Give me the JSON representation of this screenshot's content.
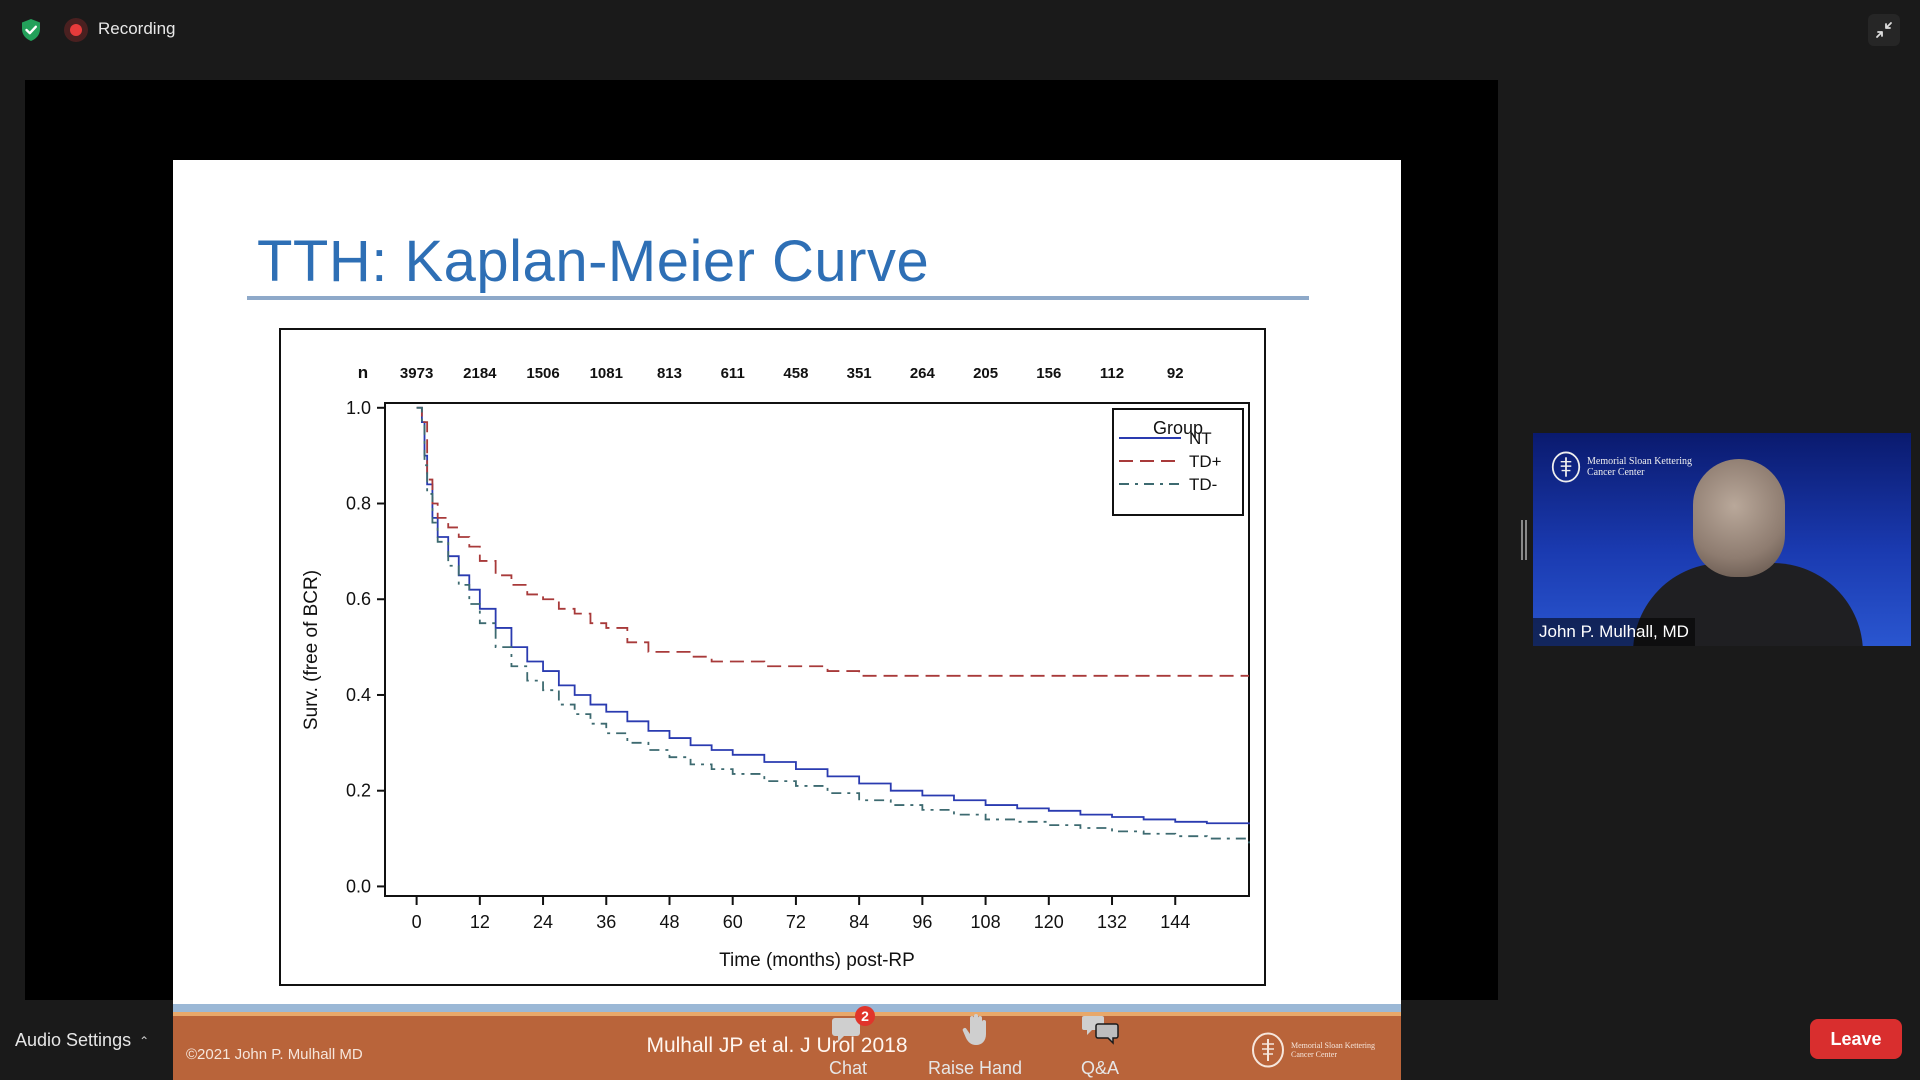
{
  "status": {
    "recording_label": "Recording"
  },
  "slide": {
    "title": "TTH: Kaplan-Meier Curve",
    "copyright": "©2021 John P. Mulhall MD",
    "citation": "Mulhall JP et al. J Urol 2018",
    "institution": "Memorial Sloan Kettering Cancer Center"
  },
  "chart_data": {
    "type": "line",
    "xlabel": "Time (months) post-RP",
    "ylabel": "Surv. (free of BCR)",
    "xlim": [
      -6,
      158
    ],
    "ylim": [
      -0.02,
      1.01
    ],
    "xticks": [
      0,
      12,
      24,
      36,
      48,
      60,
      72,
      84,
      96,
      108,
      120,
      132,
      144
    ],
    "yticks": [
      "0.0",
      "0.2",
      "0.4",
      "0.6",
      "0.8",
      "1.0"
    ],
    "at_risk_label": "n",
    "at_risk": [
      "3973",
      "2184",
      "1506",
      "1081",
      "813",
      "611",
      "458",
      "351",
      "264",
      "205",
      "156",
      "112",
      "92"
    ],
    "legend_title": "Group",
    "legend_position": "top-right",
    "series": [
      {
        "name": "NT",
        "color": "#2a3bb0",
        "style": "solid",
        "x": [
          0,
          1,
          1.5,
          2,
          3,
          4,
          6,
          8,
          10,
          12,
          15,
          18,
          21,
          24,
          27,
          30,
          33,
          36,
          40,
          44,
          48,
          52,
          56,
          60,
          66,
          72,
          78,
          84,
          90,
          96,
          102,
          108,
          114,
          120,
          126,
          132,
          138,
          144,
          150,
          158
        ],
        "y": [
          1.0,
          0.97,
          0.9,
          0.84,
          0.77,
          0.73,
          0.69,
          0.65,
          0.62,
          0.58,
          0.54,
          0.5,
          0.47,
          0.45,
          0.42,
          0.4,
          0.38,
          0.365,
          0.345,
          0.325,
          0.31,
          0.295,
          0.285,
          0.275,
          0.26,
          0.245,
          0.23,
          0.215,
          0.2,
          0.19,
          0.18,
          0.17,
          0.163,
          0.158,
          0.15,
          0.145,
          0.14,
          0.135,
          0.132,
          0.13
        ]
      },
      {
        "name": "TD+",
        "color": "#a83a3a",
        "style": "dashed",
        "x": [
          0,
          1,
          2,
          3,
          4,
          6,
          8,
          10,
          12,
          15,
          18,
          21,
          24,
          27,
          30,
          33,
          36,
          40,
          44,
          48,
          52,
          56,
          60,
          66,
          72,
          78,
          84,
          96,
          108,
          120,
          132,
          144,
          158
        ],
        "y": [
          1.0,
          0.97,
          0.85,
          0.8,
          0.77,
          0.75,
          0.73,
          0.71,
          0.68,
          0.65,
          0.63,
          0.61,
          0.6,
          0.58,
          0.57,
          0.55,
          0.54,
          0.51,
          0.49,
          0.49,
          0.48,
          0.47,
          0.47,
          0.46,
          0.46,
          0.45,
          0.44,
          0.44,
          0.44,
          0.44,
          0.44,
          0.44,
          0.44
        ]
      },
      {
        "name": "TD-",
        "color": "#3d6a70",
        "style": "dashdot",
        "x": [
          0,
          1,
          1.5,
          2,
          3,
          4,
          6,
          8,
          10,
          12,
          15,
          18,
          21,
          24,
          27,
          30,
          33,
          36,
          40,
          44,
          48,
          52,
          56,
          60,
          66,
          72,
          78,
          84,
          90,
          96,
          102,
          108,
          114,
          120,
          126,
          132,
          138,
          144,
          150,
          158
        ],
        "y": [
          1.0,
          0.97,
          0.88,
          0.82,
          0.76,
          0.72,
          0.67,
          0.63,
          0.59,
          0.55,
          0.5,
          0.46,
          0.43,
          0.41,
          0.38,
          0.36,
          0.34,
          0.32,
          0.3,
          0.285,
          0.27,
          0.255,
          0.245,
          0.235,
          0.22,
          0.21,
          0.195,
          0.18,
          0.17,
          0.16,
          0.15,
          0.14,
          0.135,
          0.128,
          0.122,
          0.115,
          0.11,
          0.105,
          0.1,
          0.09
        ]
      }
    ]
  },
  "video": {
    "participant_name": "John P. Mulhall, MD",
    "background_logo_text": "Memorial Sloan Kettering Cancer Center"
  },
  "toolbar": {
    "audio_settings": "Audio Settings",
    "chat_label": "Chat",
    "chat_badge": "2",
    "raise_hand_label": "Raise Hand",
    "qa_label": "Q&A",
    "leave_label": "Leave"
  }
}
